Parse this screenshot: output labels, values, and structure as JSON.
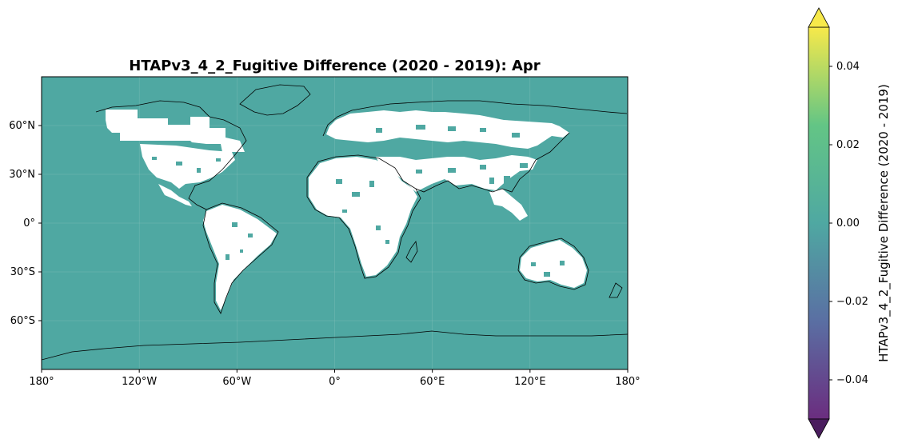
{
  "title": "HTAPv3_4_2_Fugitive Difference (2020 - 2019): Apr",
  "map": {
    "projection": "PlateCarree",
    "extent": {
      "lon": [
        -180,
        180
      ],
      "lat": [
        -90,
        90
      ]
    },
    "ocean_color": "#4fa8a2",
    "land_nodata_color": "#ffffff",
    "coastline_color": "#000000",
    "grid_color": "#8fc6bf",
    "x_ticks": [
      {
        "lon": -180,
        "label": "180°"
      },
      {
        "lon": -120,
        "label": "120°W"
      },
      {
        "lon": -60,
        "label": "60°W"
      },
      {
        "lon": 0,
        "label": "0°"
      },
      {
        "lon": 60,
        "label": "60°E"
      },
      {
        "lon": 120,
        "label": "120°E"
      },
      {
        "lon": 180,
        "label": "180°"
      }
    ],
    "y_ticks": [
      {
        "lat": 60,
        "label": "60°N"
      },
      {
        "lat": 30,
        "label": "30°N"
      },
      {
        "lat": 0,
        "label": "0°"
      },
      {
        "lat": -30,
        "label": "30°S"
      },
      {
        "lat": -60,
        "label": "60°S"
      }
    ]
  },
  "colorbar": {
    "label": "HTAPv3_4_2_Fugitive Difference (2020 - 2019)",
    "colormap": "viridis",
    "range": [
      -0.05,
      0.05
    ],
    "extend": "both",
    "ticks": [
      {
        "value": 0.04,
        "label": "0.04"
      },
      {
        "value": 0.02,
        "label": "0.02"
      },
      {
        "value": 0.0,
        "label": "0.00"
      },
      {
        "value": -0.02,
        "label": "−0.02"
      },
      {
        "value": -0.04,
        "label": "−0.04"
      }
    ],
    "colors": [
      "#2e0a4a",
      "#3b518b",
      "#21908d",
      "#5dc863",
      "#fde725"
    ]
  }
}
